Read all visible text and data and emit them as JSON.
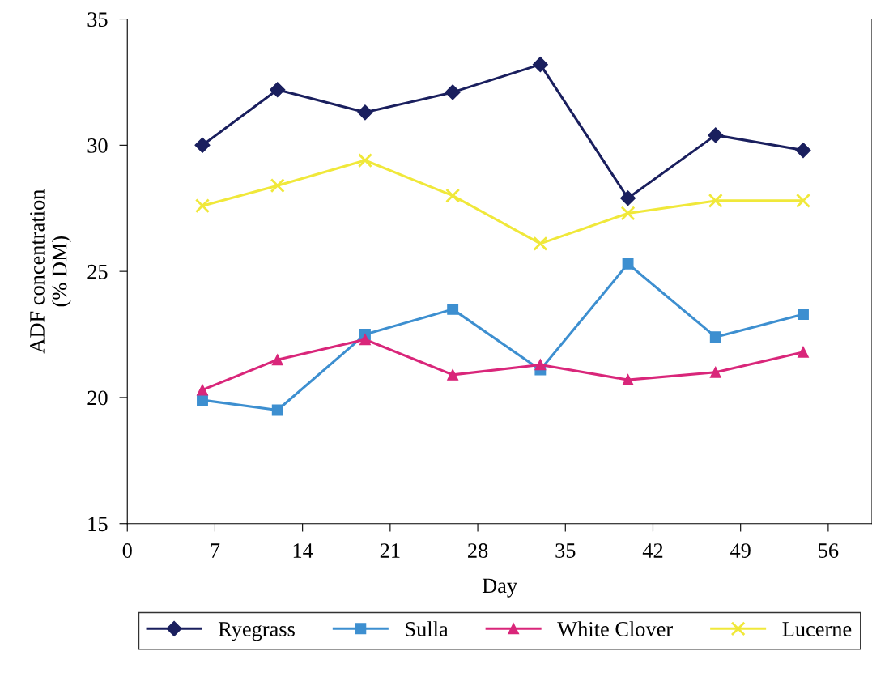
{
  "chart_data": {
    "type": "line",
    "xlabel": "Day",
    "ylabel": "ADF concentration\n(% DM)",
    "x": [
      6,
      12,
      19,
      26,
      33,
      40,
      47,
      54
    ],
    "series": [
      {
        "name": "Ryegrass",
        "color": "#1a1f5e",
        "marker": "diamond",
        "values": [
          30.0,
          32.2,
          31.3,
          32.1,
          33.2,
          27.9,
          30.4,
          29.8
        ]
      },
      {
        "name": "Sulla",
        "color": "#3d8fd0",
        "marker": "square",
        "values": [
          19.9,
          19.5,
          22.5,
          23.5,
          21.1,
          25.3,
          22.4,
          23.3
        ]
      },
      {
        "name": "White Clover",
        "color": "#d9267a",
        "marker": "triangle",
        "values": [
          20.3,
          21.5,
          22.3,
          20.9,
          21.3,
          20.7,
          21.0,
          21.8
        ]
      },
      {
        "name": "Lucerne",
        "color": "#f0e83a",
        "marker": "cross",
        "values": [
          27.6,
          28.4,
          29.4,
          28.0,
          26.1,
          27.3,
          27.8,
          27.8
        ]
      }
    ],
    "xlim": [
      0,
      59.5
    ],
    "xticks": [
      0,
      7,
      14,
      21,
      28,
      35,
      42,
      49,
      56
    ],
    "ylim": [
      15,
      35
    ],
    "yticks": [
      15,
      20,
      25,
      30,
      35
    ],
    "grid": false,
    "legend": "bottom",
    "line_style": "solid"
  }
}
